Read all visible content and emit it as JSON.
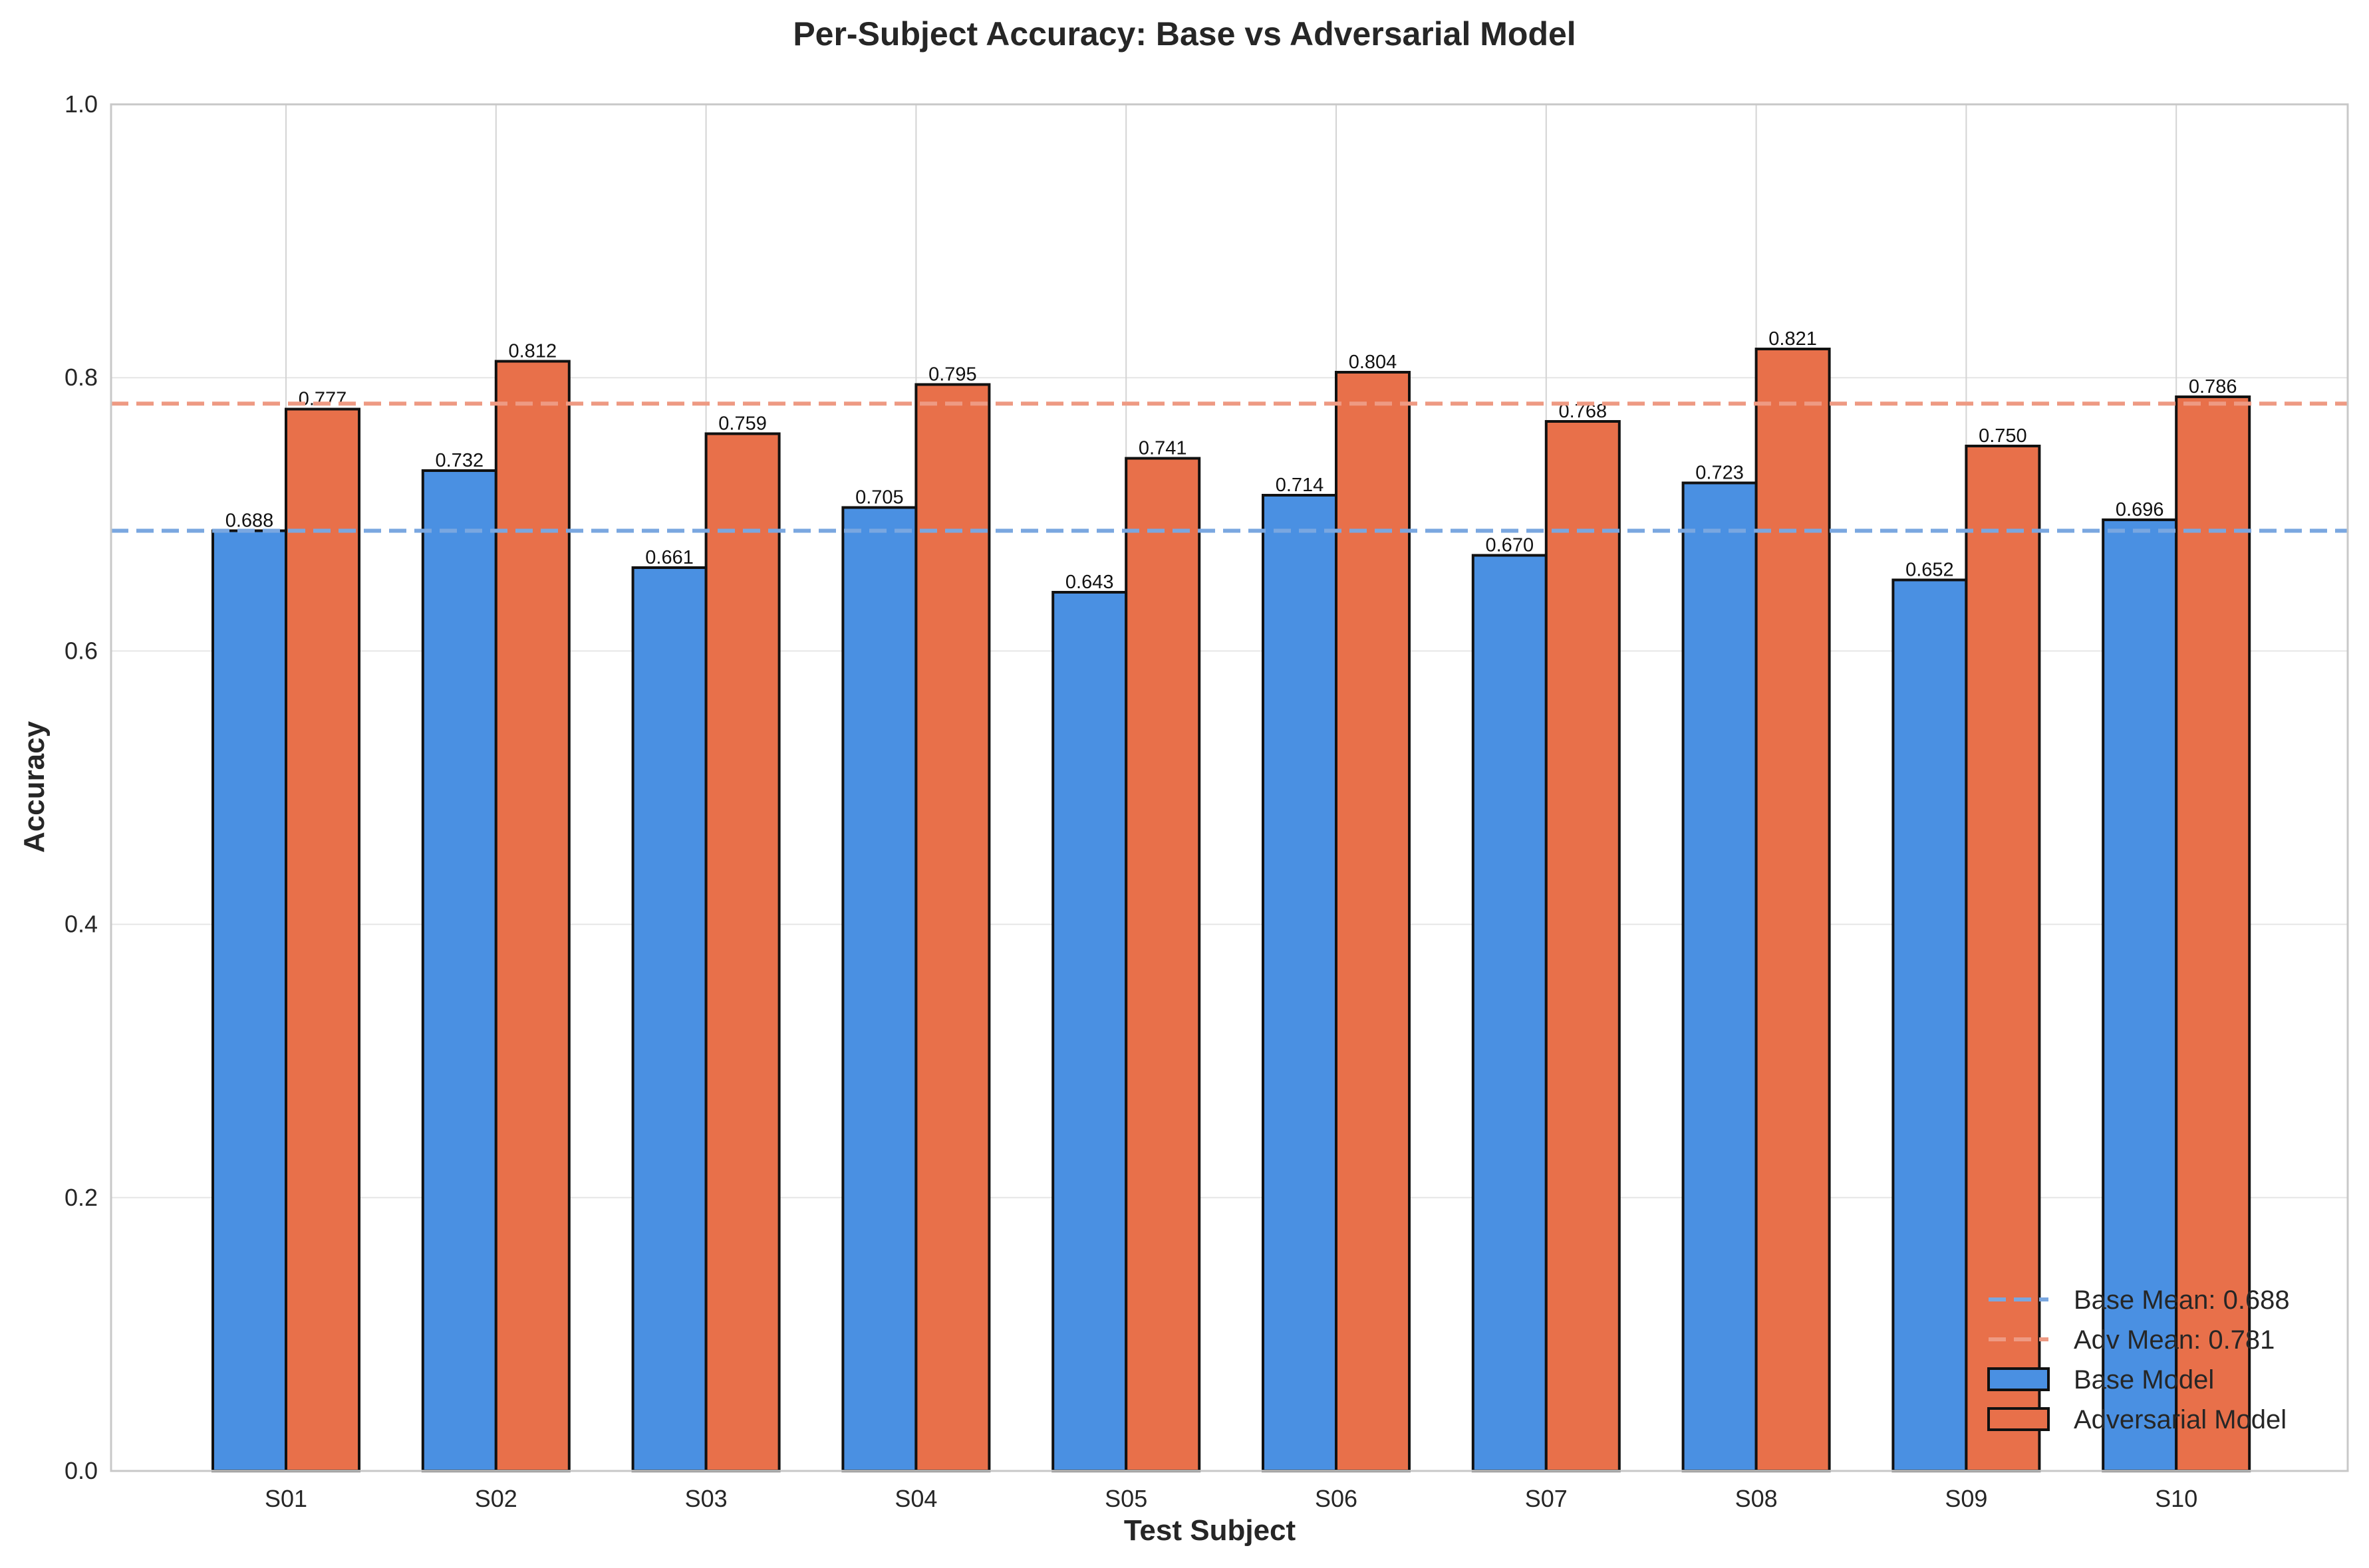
{
  "chart_data": {
    "type": "bar",
    "title": "Per-Subject Accuracy: Base vs Adversarial Model",
    "xlabel": "Test Subject",
    "ylabel": "Accuracy",
    "ylim": [
      0,
      1.0
    ],
    "yticks": [
      0.0,
      0.2,
      0.4,
      0.6,
      0.8,
      1.0
    ],
    "ytick_labels": [
      "0.0",
      "0.2",
      "0.4",
      "0.6",
      "0.8",
      "1.0"
    ],
    "categories": [
      "S01",
      "S02",
      "S03",
      "S04",
      "S05",
      "S06",
      "S07",
      "S08",
      "S09",
      "S10"
    ],
    "series": [
      {
        "name": "Base Model",
        "color": "#4A90E2",
        "values": [
          0.688,
          0.732,
          0.661,
          0.705,
          0.643,
          0.714,
          0.67,
          0.723,
          0.652,
          0.696
        ],
        "labels": [
          "0.688",
          "0.732",
          "0.661",
          "0.705",
          "0.643",
          "0.714",
          "0.670",
          "0.723",
          "0.652",
          "0.696"
        ]
      },
      {
        "name": "Adversarial Model",
        "color": "#E8704A",
        "values": [
          0.777,
          0.812,
          0.759,
          0.795,
          0.741,
          0.804,
          0.768,
          0.821,
          0.75,
          0.786
        ],
        "labels": [
          "0.777",
          "0.812",
          "0.759",
          "0.795",
          "0.741",
          "0.804",
          "0.768",
          "0.821",
          "0.750",
          "0.786"
        ]
      }
    ],
    "reference_lines": [
      {
        "name": "Base Mean: 0.688",
        "value": 0.688,
        "color": "#7AA7E0",
        "style": "dashed"
      },
      {
        "name": "Adv Mean: 0.781",
        "value": 0.781,
        "color": "#EE9A83",
        "style": "dashed"
      }
    ],
    "grid": true,
    "legend_position": "bottom-right"
  }
}
